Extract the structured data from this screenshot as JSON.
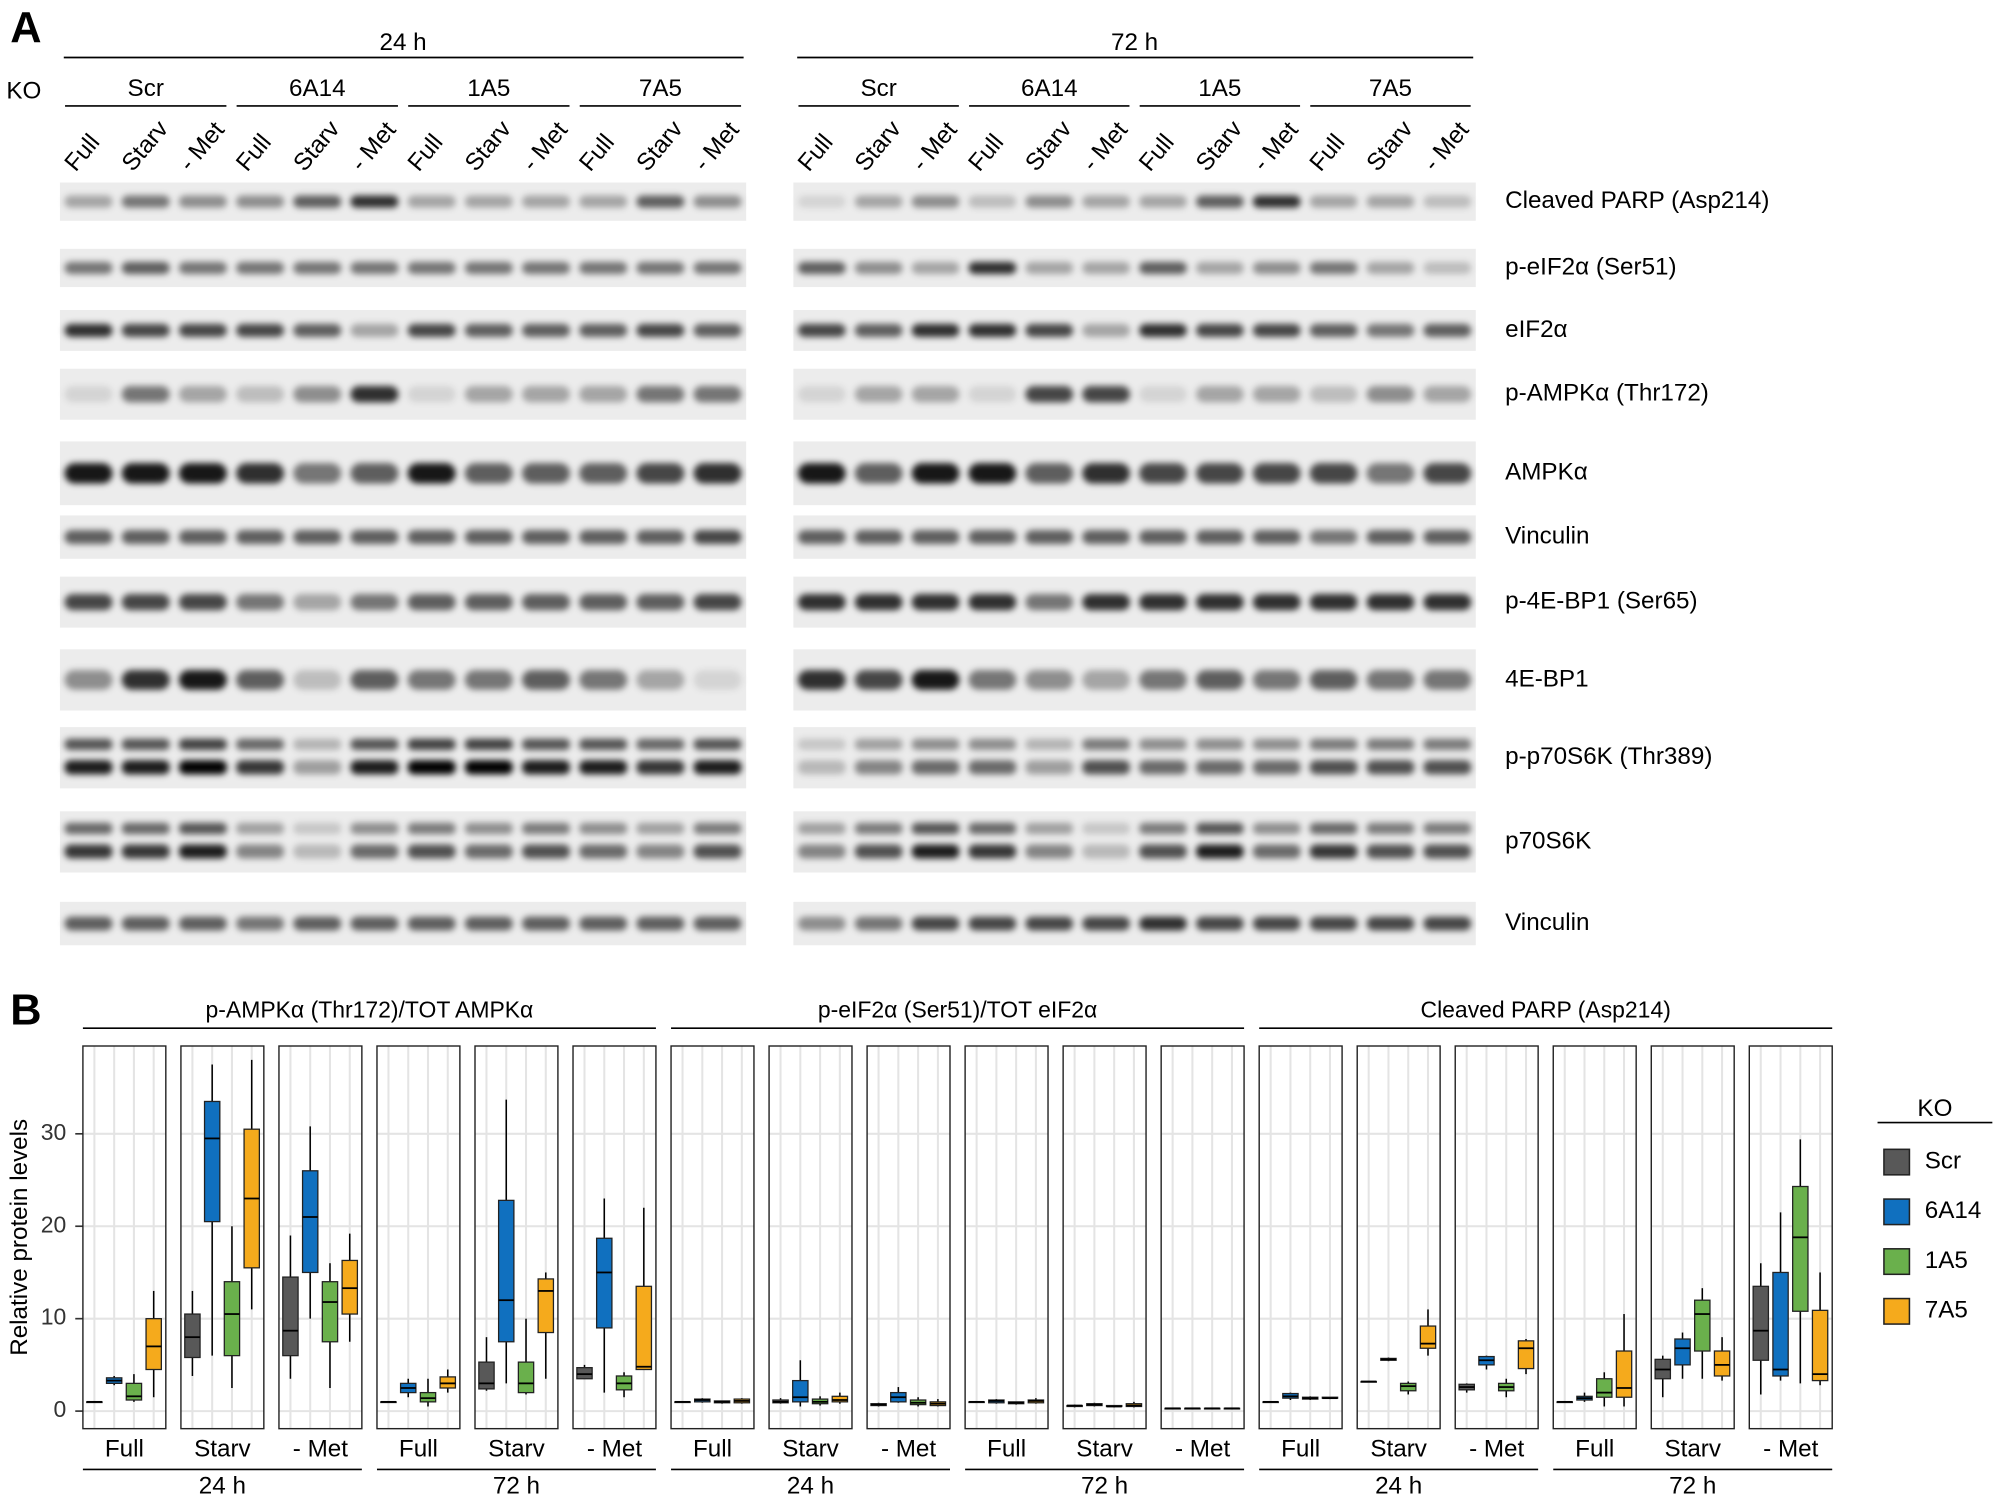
{
  "panel_a": {
    "label": "A",
    "ko_label": "KO",
    "times": [
      "24 h",
      "72 h"
    ],
    "clones": [
      "Scr",
      "6A14",
      "1A5",
      "7A5"
    ],
    "conditions": [
      "Full",
      "Starv",
      "- Met"
    ],
    "proteins": [
      "Cleaved PARP (Asp214)",
      "p-eIF2α (Ser51)",
      "eIF2α",
      "p-AMPKα (Thr172)",
      "AMPKα",
      "Vinculin",
      "p-4E-BP1 (Ser65)",
      "4E-BP1",
      "p-p70S6K (Thr389)",
      "p70S6K",
      "Vinculin"
    ]
  },
  "chart_data": {
    "type": "boxplot",
    "label": "B",
    "y_label": "Relative protein levels",
    "ylim": [
      -1.9,
      39.5
    ],
    "yticks": [
      0,
      10,
      20,
      30
    ],
    "grid": true,
    "legend_title": "KO",
    "series": [
      {
        "name": "Scr",
        "color": "#585858"
      },
      {
        "name": "6A14",
        "color": "#1070bf"
      },
      {
        "name": "1A5",
        "color": "#6ab04c"
      },
      {
        "name": "7A5",
        "color": "#f5aa1c"
      }
    ],
    "panels": [
      {
        "title": "p-AMPKα (Thr172)/TOT AMPKα",
        "times": [
          {
            "label": "24 h",
            "conditions": [
              {
                "label": "Full",
                "boxes": [
                  [
                    1,
                    1,
                    1,
                    1,
                    1
                  ],
                  [
                    2.8,
                    3,
                    3.3,
                    3.6,
                    3.8
                  ],
                  [
                    1,
                    1.2,
                    1.6,
                    3,
                    4
                  ],
                  [
                    1.5,
                    4.5,
                    7,
                    10,
                    13
                  ]
                ]
              },
              {
                "label": "Starv",
                "boxes": [
                  [
                    3.8,
                    5.8,
                    8,
                    10.5,
                    13
                  ],
                  [
                    6,
                    20.5,
                    29.5,
                    33.5,
                    37.5
                  ],
                  [
                    2.5,
                    6,
                    10.5,
                    14,
                    20
                  ],
                  [
                    11,
                    15.5,
                    23,
                    30.5,
                    38
                  ]
                ]
              },
              {
                "label": "- Met",
                "boxes": [
                  [
                    3.5,
                    6,
                    8.7,
                    14.5,
                    19
                  ],
                  [
                    10,
                    15,
                    21,
                    26,
                    30.8
                  ],
                  [
                    2.5,
                    7.5,
                    11.8,
                    14,
                    16
                  ],
                  [
                    7.5,
                    10.5,
                    13.3,
                    16.3,
                    19.2
                  ]
                ]
              }
            ]
          },
          {
            "label": "72 h",
            "conditions": [
              {
                "label": "Full",
                "boxes": [
                  [
                    1,
                    1,
                    1,
                    1,
                    1
                  ],
                  [
                    1.5,
                    2,
                    2.5,
                    3,
                    3.5
                  ],
                  [
                    0.5,
                    1,
                    1.4,
                    2,
                    3.5
                  ],
                  [
                    2,
                    2.5,
                    3,
                    3.7,
                    4.5
                  ]
                ]
              },
              {
                "label": "Starv",
                "boxes": [
                  [
                    2.2,
                    2.4,
                    3,
                    5.3,
                    8
                  ],
                  [
                    3,
                    7.5,
                    12,
                    22.8,
                    33.7
                  ],
                  [
                    1.8,
                    2,
                    3,
                    5.3,
                    10
                  ],
                  [
                    3.5,
                    8.5,
                    13,
                    14.3,
                    15
                  ]
                ]
              },
              {
                "label": "- Met",
                "boxes": [
                  [
                    3.5,
                    3.5,
                    4,
                    4.7,
                    5
                  ],
                  [
                    2,
                    9,
                    15,
                    18.7,
                    23
                  ],
                  [
                    1.5,
                    2.3,
                    3,
                    3.8,
                    4.2
                  ],
                  [
                    4.5,
                    4.5,
                    4.8,
                    13.5,
                    22
                  ]
                ]
              }
            ]
          }
        ]
      },
      {
        "title": "p-eIF2α (Ser51)/TOT eIF2α",
        "times": [
          {
            "label": "24 h",
            "conditions": [
              {
                "label": "Full",
                "boxes": [
                  [
                    1,
                    1,
                    1,
                    1,
                    1
                  ],
                  [
                    0.9,
                    1,
                    1.2,
                    1.3,
                    1.4
                  ],
                  [
                    0.8,
                    0.9,
                    1,
                    1.1,
                    1.1
                  ],
                  [
                    0.8,
                    0.9,
                    1.1,
                    1.3,
                    1.4
                  ]
                ]
              },
              {
                "label": "Starv",
                "boxes": [
                  [
                    0.8,
                    0.9,
                    1,
                    1.2,
                    1.4
                  ],
                  [
                    0.5,
                    1,
                    1.5,
                    3.3,
                    5.5
                  ],
                  [
                    0.6,
                    0.8,
                    1,
                    1.3,
                    1.6
                  ],
                  [
                    0.8,
                    1,
                    1.2,
                    1.6,
                    2
                  ]
                ]
              },
              {
                "label": "- Met",
                "boxes": [
                  [
                    0.5,
                    0.6,
                    0.7,
                    0.8,
                    0.9
                  ],
                  [
                    0.9,
                    1,
                    1.5,
                    2,
                    2.6
                  ],
                  [
                    0.5,
                    0.7,
                    0.9,
                    1.2,
                    1.5
                  ],
                  [
                    0.5,
                    0.6,
                    0.8,
                    1,
                    1.3
                  ]
                ]
              }
            ]
          },
          {
            "label": "72 h",
            "conditions": [
              {
                "label": "Full",
                "boxes": [
                  [
                    1,
                    1,
                    1,
                    1,
                    1
                  ],
                  [
                    0.8,
                    0.9,
                    1.1,
                    1.2,
                    1.3
                  ],
                  [
                    0.7,
                    0.8,
                    0.9,
                    1,
                    1
                  ],
                  [
                    0.8,
                    0.9,
                    1.1,
                    1.2,
                    1.4
                  ]
                ]
              },
              {
                "label": "Starv",
                "boxes": [
                  [
                    0.4,
                    0.5,
                    0.6,
                    0.6,
                    0.7
                  ],
                  [
                    0.5,
                    0.6,
                    0.7,
                    0.8,
                    0.9
                  ],
                  [
                    0.4,
                    0.5,
                    0.5,
                    0.6,
                    0.6
                  ],
                  [
                    0.4,
                    0.5,
                    0.6,
                    0.8,
                    1
                  ]
                ]
              },
              {
                "label": "- Met",
                "boxes": [
                  [
                    0.3,
                    0.3,
                    0.3,
                    0.3,
                    0.3
                  ],
                  [
                    0.3,
                    0.3,
                    0.3,
                    0.3,
                    0.3
                  ],
                  [
                    0.3,
                    0.3,
                    0.3,
                    0.3,
                    0.3
                  ],
                  [
                    0.3,
                    0.3,
                    0.3,
                    0.3,
                    0.3
                  ]
                ]
              }
            ]
          }
        ]
      },
      {
        "title": "Cleaved PARP (Asp214)",
        "times": [
          {
            "label": "24 h",
            "conditions": [
              {
                "label": "Full",
                "boxes": [
                  [
                    1,
                    1,
                    1,
                    1,
                    1
                  ],
                  [
                    1.2,
                    1.4,
                    1.6,
                    1.9,
                    2
                  ],
                  [
                    1.2,
                    1.3,
                    1.4,
                    1.5,
                    1.6
                  ],
                  [
                    1.3,
                    1.4,
                    1.4,
                    1.5,
                    1.5
                  ]
                ]
              },
              {
                "label": "Starv",
                "boxes": [
                  [
                    3.2,
                    3.2,
                    3.2,
                    3.2,
                    3.2
                  ],
                  [
                    5.4,
                    5.5,
                    5.6,
                    5.7,
                    5.8
                  ],
                  [
                    1.8,
                    2.2,
                    2.7,
                    3,
                    3.2
                  ],
                  [
                    6,
                    6.8,
                    7.3,
                    9.2,
                    11
                  ]
                ]
              },
              {
                "label": "- Met",
                "boxes": [
                  [
                    2,
                    2.3,
                    2.6,
                    2.9,
                    3
                  ],
                  [
                    4.5,
                    5,
                    5.5,
                    5.9,
                    6
                  ],
                  [
                    1.5,
                    2.2,
                    2.6,
                    3,
                    3.5
                  ],
                  [
                    4,
                    4.6,
                    6.8,
                    7.6,
                    7.8
                  ]
                ]
              }
            ]
          },
          {
            "label": "72 h",
            "conditions": [
              {
                "label": "Full",
                "boxes": [
                  [
                    1,
                    1,
                    1,
                    1,
                    1
                  ],
                  [
                    1,
                    1.2,
                    1.4,
                    1.6,
                    2
                  ],
                  [
                    0.5,
                    1.5,
                    2,
                    3.5,
                    4.2
                  ],
                  [
                    0.5,
                    1.5,
                    2.5,
                    6.5,
                    10.5
                  ]
                ]
              },
              {
                "label": "Starv",
                "boxes": [
                  [
                    1.5,
                    3.5,
                    4.5,
                    5.6,
                    6
                  ],
                  [
                    3.5,
                    5,
                    6.8,
                    7.8,
                    8.5
                  ],
                  [
                    3.5,
                    6.5,
                    10.5,
                    12,
                    13.3
                  ],
                  [
                    3.3,
                    3.8,
                    5,
                    6.5,
                    8
                  ]
                ]
              },
              {
                "label": "- Met",
                "boxes": [
                  [
                    1.8,
                    5.5,
                    8.7,
                    13.5,
                    16
                  ],
                  [
                    3.3,
                    3.8,
                    4.5,
                    15,
                    21.5
                  ],
                  [
                    3,
                    10.8,
                    18.8,
                    24.3,
                    29.4
                  ],
                  [
                    2.8,
                    3.3,
                    4,
                    10.9,
                    15
                  ]
                ]
              }
            ]
          }
        ]
      }
    ]
  }
}
